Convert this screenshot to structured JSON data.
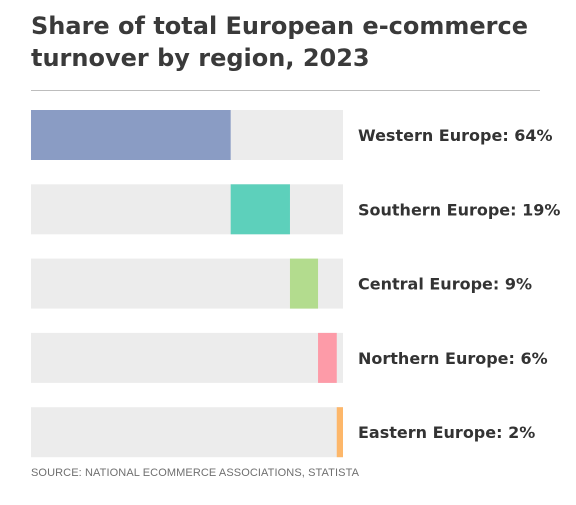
{
  "chart_data": {
    "type": "bar",
    "title": "Share of total European e-commerce turnover by region, 2023",
    "orientation": "horizontal-stacked-progress",
    "categories": [
      "Western Europe",
      "Southern Europe",
      "Central Europe",
      "Northern Europe",
      "Eastern Europe"
    ],
    "values": [
      64,
      19,
      9,
      6,
      2
    ],
    "labels": [
      "Western Europe: 64%",
      "Southern Europe: 19%",
      "Central Europe: 9%",
      "Northern Europe: 6%",
      "Eastern Europe: 2%"
    ],
    "colors": [
      "#8a9cc4",
      "#5dd0bb",
      "#b3dc8e",
      "#fd9ba8",
      "#fdb76a"
    ],
    "track_color": "#ececec",
    "xlim": [
      0,
      100
    ],
    "grid": false
  },
  "source": "SOURCE: NATIONAL ECOMMERCE ASSOCIATIONS, STATISTA"
}
